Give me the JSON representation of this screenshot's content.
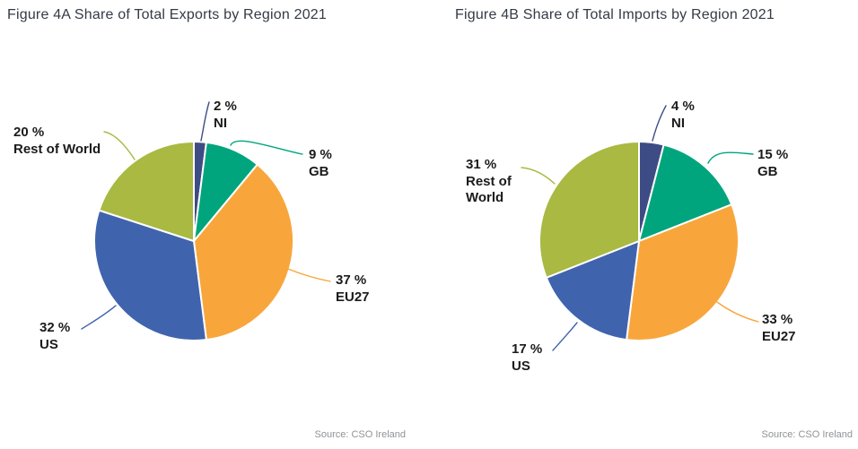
{
  "page": {
    "background": "#ffffff",
    "title_color": "#343b45",
    "label_color": "#1b1b1b",
    "source_color": "#8f9296"
  },
  "chart_data": [
    {
      "type": "pie",
      "title": "Figure 4A Share of Total Exports by Region 2021",
      "source": "Source: CSO Ireland",
      "unit": "%",
      "start_angle_deg": 0,
      "direction": "clockwise",
      "legend_position": "outside-labels",
      "categories": [
        "NI",
        "GB",
        "EU27",
        "US",
        "Rest of World"
      ],
      "values": [
        2,
        9,
        37,
        32,
        20
      ],
      "colors": [
        "#3e4c85",
        "#00a57d",
        "#f8a63c",
        "#4063ad",
        "#a9b942"
      ]
    },
    {
      "type": "pie",
      "title": "Figure 4B Share of Total Imports by Region 2021",
      "source": "Source: CSO Ireland",
      "unit": "%",
      "start_angle_deg": 0,
      "direction": "clockwise",
      "legend_position": "outside-labels",
      "categories": [
        "NI",
        "GB",
        "EU27",
        "US",
        "Rest of World"
      ],
      "values": [
        4,
        15,
        33,
        17,
        31
      ],
      "colors": [
        "#3e4c85",
        "#00a57d",
        "#f8a63c",
        "#4063ad",
        "#a9b942"
      ]
    }
  ]
}
